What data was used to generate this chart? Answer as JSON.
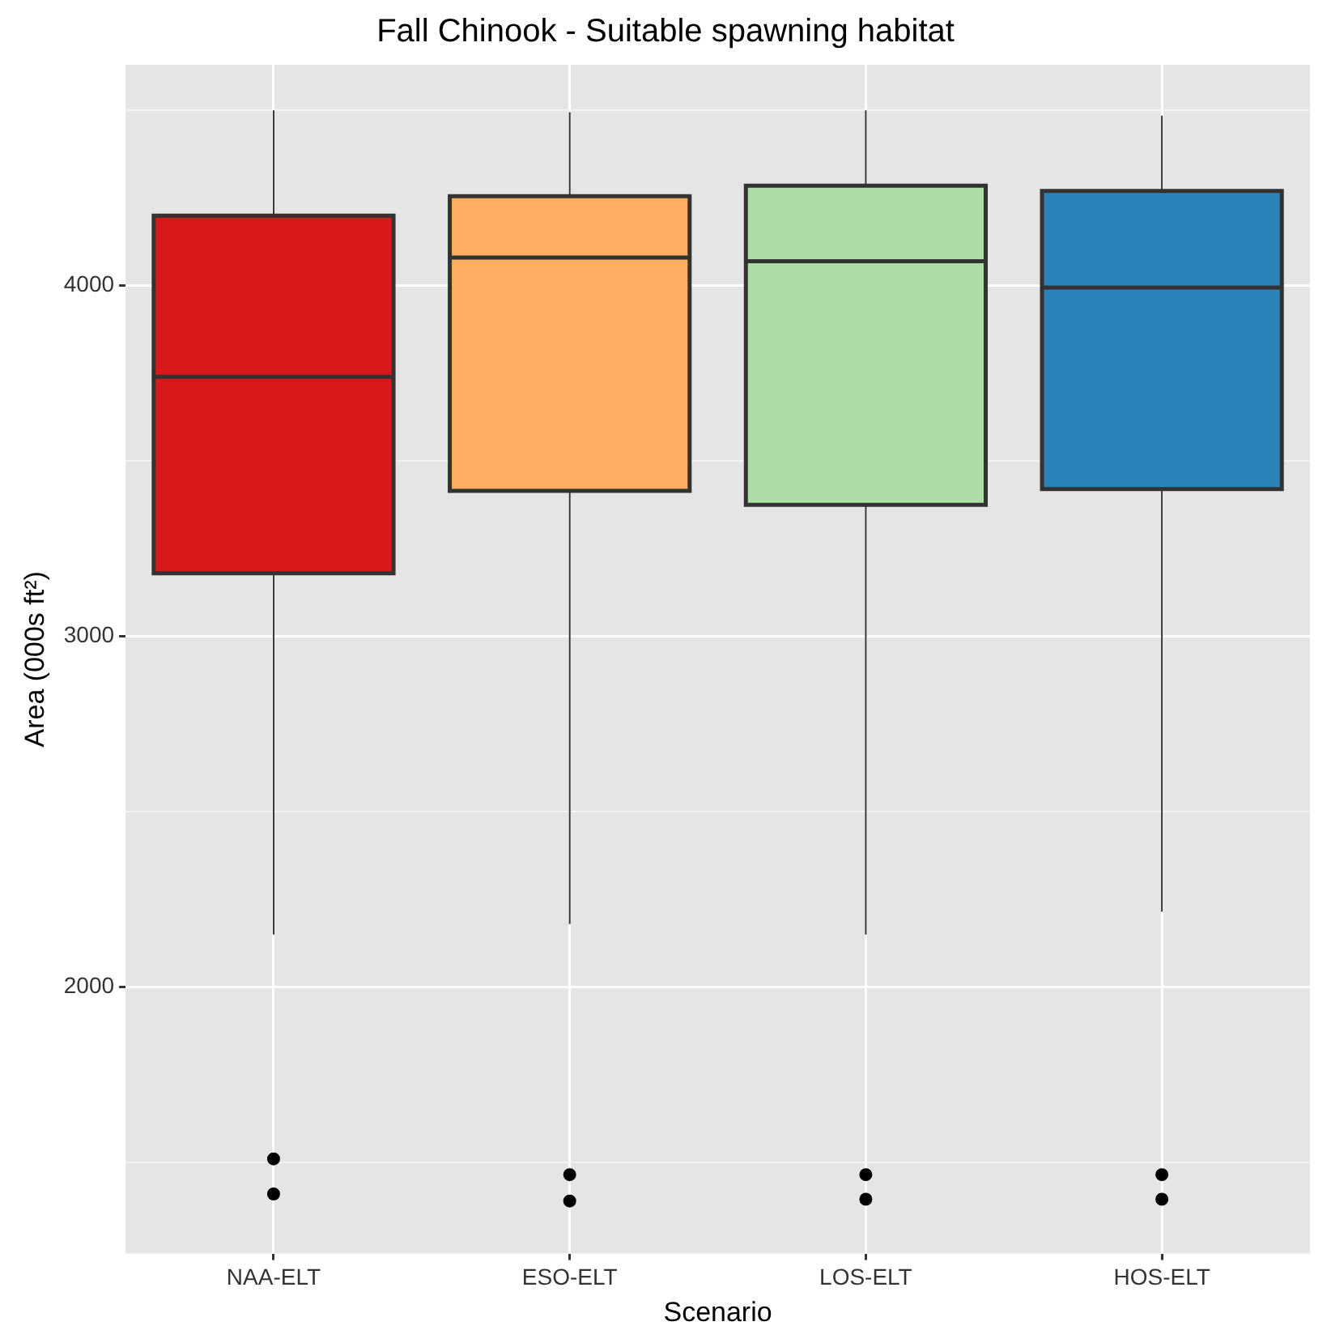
{
  "chart_data": {
    "type": "box",
    "title": "Fall Chinook - Suitable spawning habitat",
    "xlabel": "Scenario",
    "ylabel": "Area (000s ft²)",
    "categories": [
      "NAA-ELT",
      "ESO-ELT",
      "LOS-ELT",
      "HOS-ELT"
    ],
    "colors": [
      "#d7191c",
      "#fdae61",
      "#abdda4",
      "#2b83ba"
    ],
    "boxes": [
      {
        "low": 2150,
        "q1": 3180,
        "median": 3740,
        "q3": 4200,
        "high": 4500,
        "outliers": [
          1510,
          1410
        ]
      },
      {
        "low": 2180,
        "q1": 3415,
        "median": 4080,
        "q3": 4255,
        "high": 4495,
        "outliers": [
          1465,
          1390
        ]
      },
      {
        "low": 2150,
        "q1": 3375,
        "median": 4070,
        "q3": 4285,
        "high": 4500,
        "outliers": [
          1465,
          1395
        ]
      },
      {
        "low": 2215,
        "q1": 3420,
        "median": 3995,
        "q3": 4270,
        "high": 4485,
        "outliers": [
          1465,
          1395
        ]
      }
    ],
    "ylim": [
      1240,
      4630
    ],
    "yticks": [
      {
        "value": 1500,
        "label": null
      },
      2000,
      {
        "value": 2500,
        "label": null
      },
      3000,
      {
        "value": 3500,
        "label": null
      },
      4000,
      {
        "value": 4500,
        "label": null
      }
    ],
    "grid": true
  }
}
